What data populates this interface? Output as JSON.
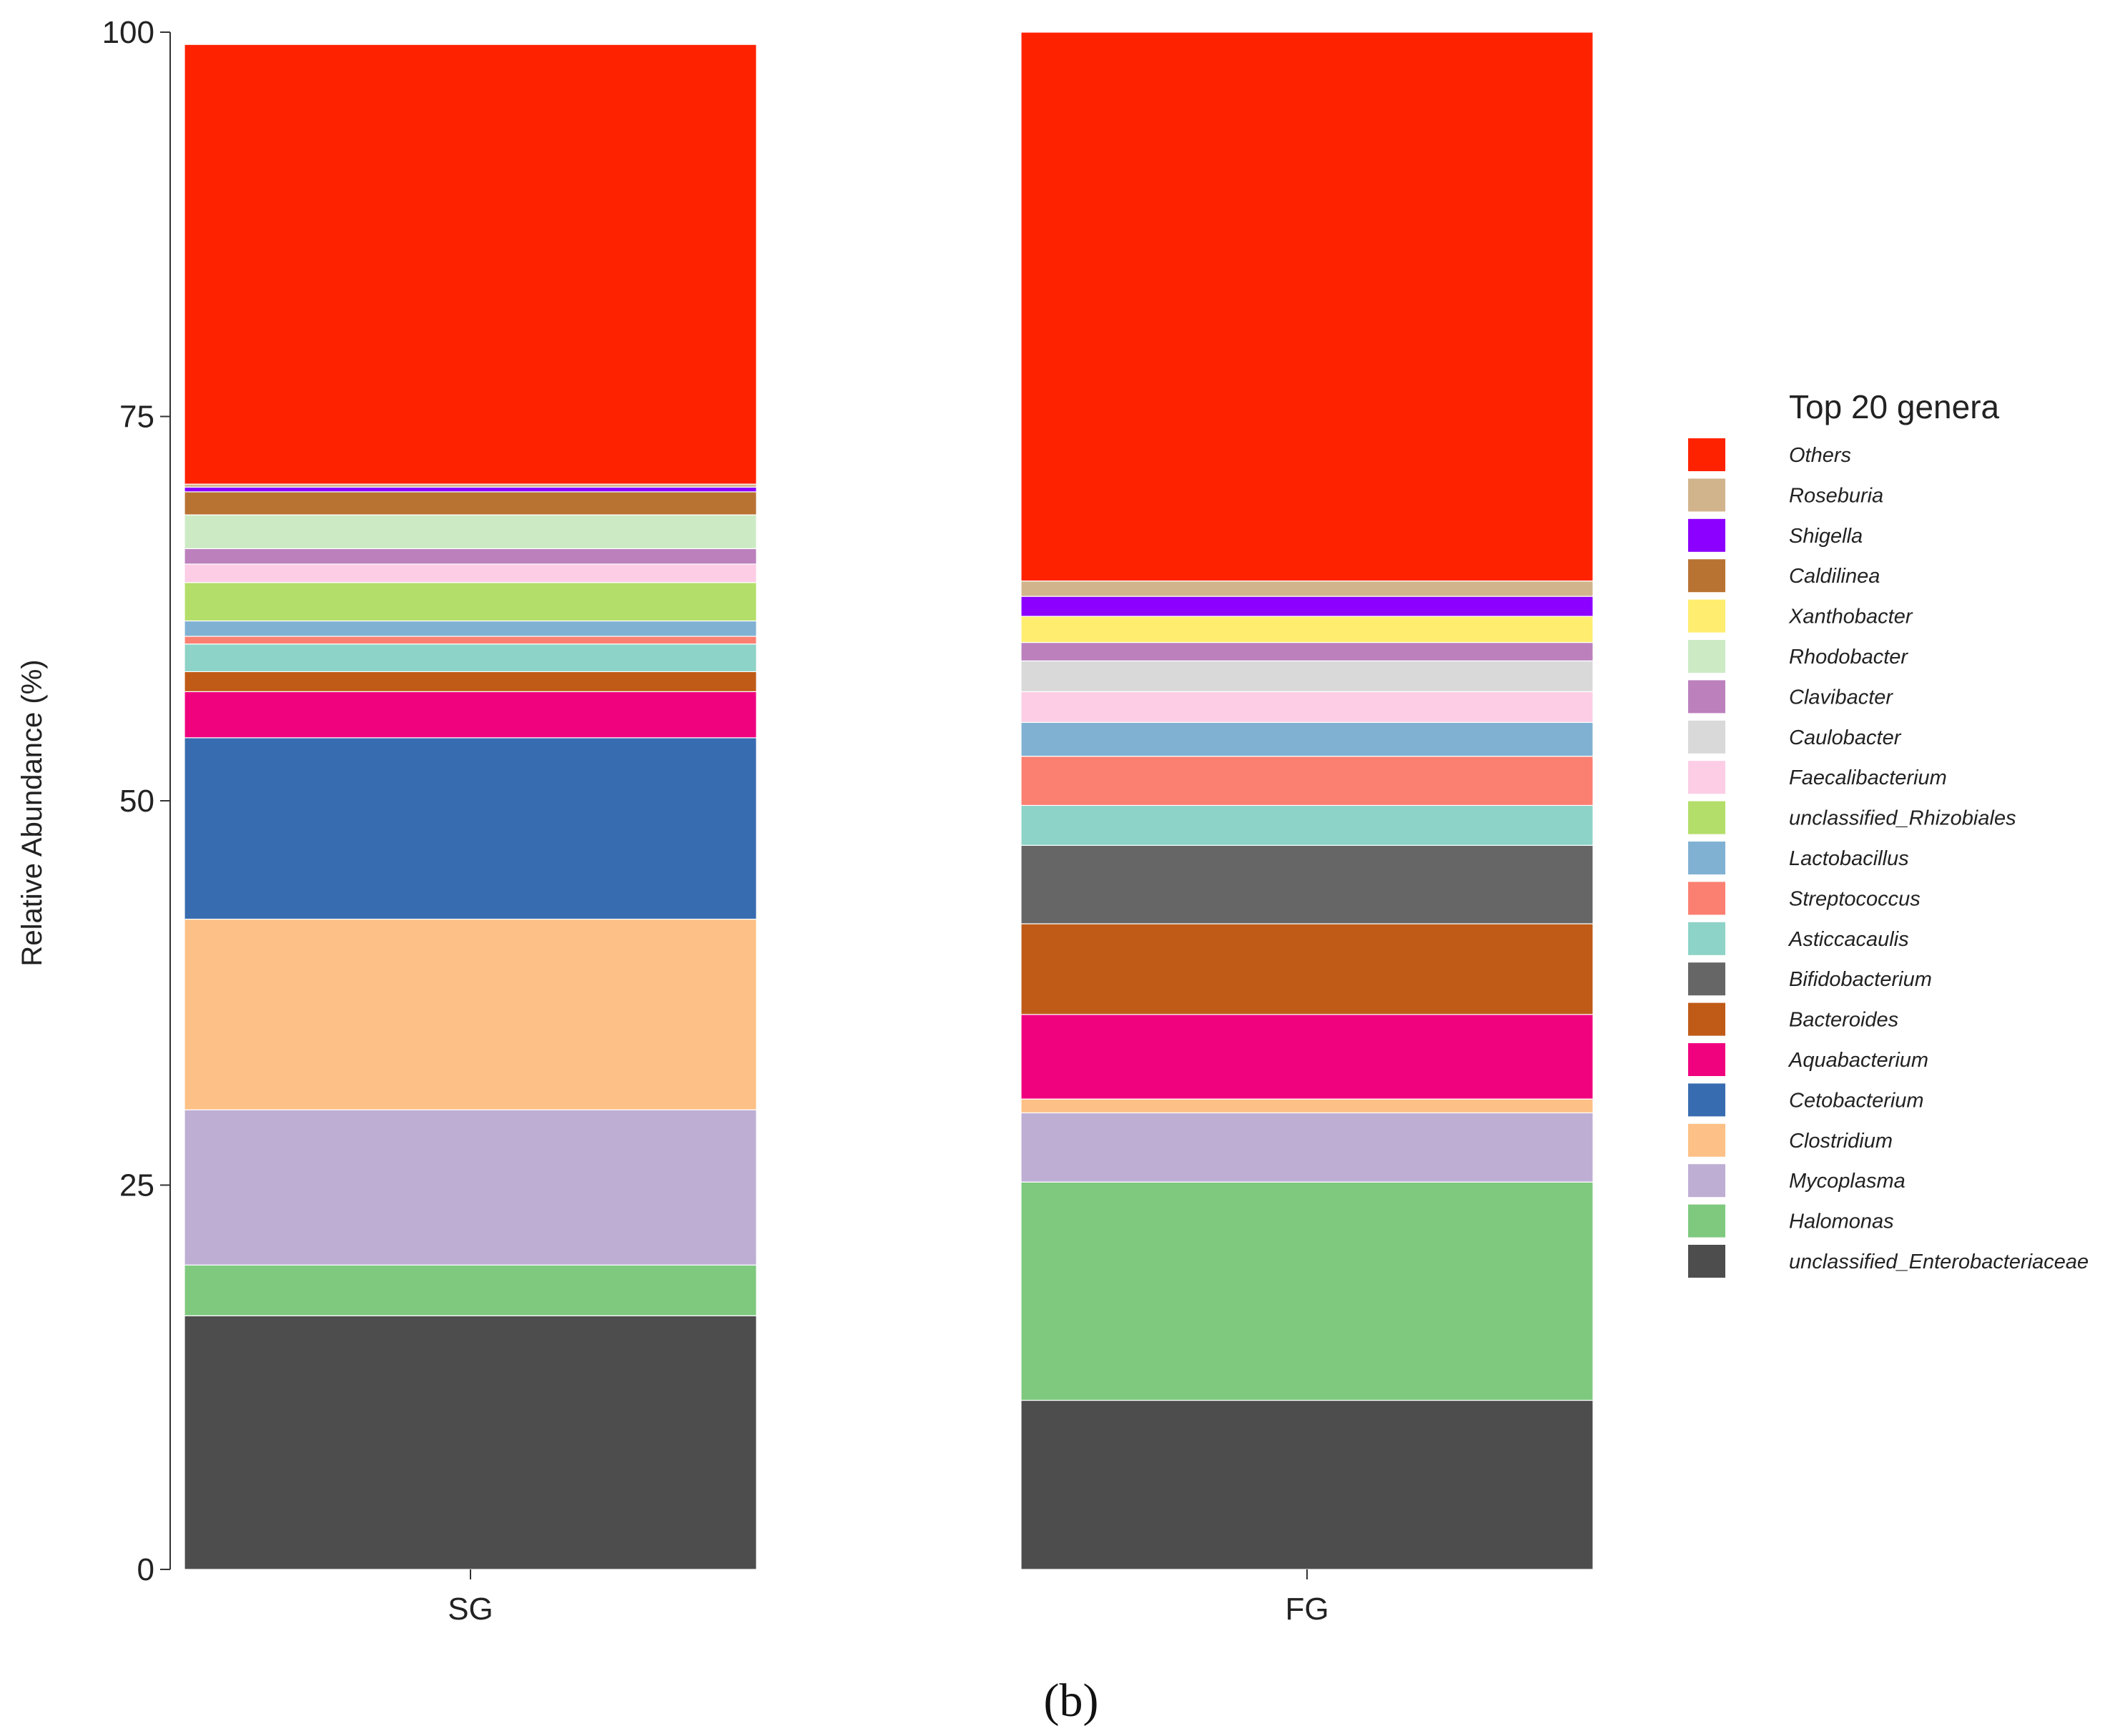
{
  "chart_data": {
    "type": "bar",
    "stacked": true,
    "title": "",
    "xlabel": "",
    "ylabel": "Relative Abundance (%)",
    "ylim": [
      0,
      100
    ],
    "yticks": [
      0,
      25,
      50,
      75,
      100
    ],
    "categories": [
      "SG",
      "FG"
    ],
    "legend_title": "Top 20 genera",
    "legend_position": "right",
    "caption": "(b)",
    "series": [
      {
        "name": "unclassified_Enterobacteriaceae",
        "color": "#4d4d4d",
        "values": [
          16.5,
          11.0
        ]
      },
      {
        "name": "Halomonas",
        "color": "#7fc97f",
        "values": [
          3.3,
          14.2
        ]
      },
      {
        "name": "Mycoplasma",
        "color": "#beaed4",
        "values": [
          10.1,
          4.5
        ]
      },
      {
        "name": "Clostridium",
        "color": "#fdc086",
        "values": [
          12.4,
          0.9
        ]
      },
      {
        "name": "Cetobacterium",
        "color": "#386cb0",
        "values": [
          11.8,
          0.0
        ]
      },
      {
        "name": "Aquabacterium",
        "color": "#f0027f",
        "values": [
          3.0,
          5.5
        ]
      },
      {
        "name": "Bacteroides",
        "color": "#bf5b17",
        "values": [
          1.3,
          5.9
        ]
      },
      {
        "name": "Bifidobacterium",
        "color": "#666666",
        "values": [
          0.0,
          5.1
        ]
      },
      {
        "name": "Asticcacaulis",
        "color": "#8dd3c7",
        "values": [
          1.8,
          2.6
        ]
      },
      {
        "name": "Streptococcus",
        "color": "#fb8072",
        "values": [
          0.5,
          3.2
        ]
      },
      {
        "name": "Lactobacillus",
        "color": "#80b1d3",
        "values": [
          1.0,
          2.2
        ]
      },
      {
        "name": "unclassified_Rhizobiales",
        "color": "#b3de69",
        "values": [
          2.5,
          0.0
        ]
      },
      {
        "name": "Faecalibacterium",
        "color": "#fccde5",
        "values": [
          1.2,
          2.0
        ]
      },
      {
        "name": "Caulobacter",
        "color": "#d9d9d9",
        "values": [
          0.0,
          2.0
        ]
      },
      {
        "name": "Clavibacter",
        "color": "#bc80bd",
        "values": [
          1.0,
          1.2
        ]
      },
      {
        "name": "Rhodobacter",
        "color": "#ccebc5",
        "values": [
          2.2,
          0.0
        ]
      },
      {
        "name": "Xanthobacter",
        "color": "#ffed6f",
        "values": [
          0.0,
          1.7
        ]
      },
      {
        "name": "Caldilinea",
        "color": "#b87333",
        "values": [
          1.5,
          0.0
        ]
      },
      {
        "name": "Shigella",
        "color": "#8b00ff",
        "values": [
          0.3,
          1.3
        ]
      },
      {
        "name": "Roseburia",
        "color": "#d2b48c",
        "values": [
          0.2,
          1.0
        ]
      },
      {
        "name": "Others",
        "color": "#ff2200",
        "values": [
          28.6,
          35.7
        ]
      }
    ]
  }
}
